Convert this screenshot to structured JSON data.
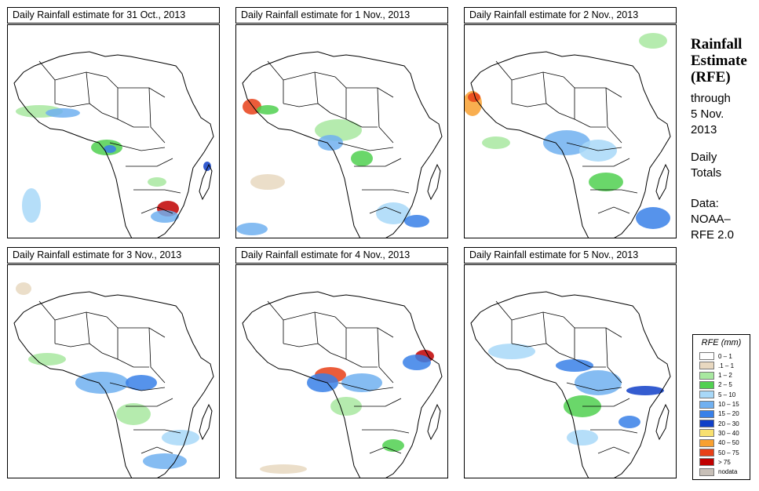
{
  "panels": [
    {
      "title": "Daily Rainfall estimate for  31 Oct., 2013",
      "variant": 0
    },
    {
      "title": "Daily Rainfall estimate for  1 Nov., 2013",
      "variant": 1
    },
    {
      "title": "Daily Rainfall estimate for  2 Nov., 2013",
      "variant": 2
    },
    {
      "title": "Daily Rainfall estimate for  3 Nov., 2013",
      "variant": 3
    },
    {
      "title": "Daily Rainfall estimate for  4 Nov., 2013",
      "variant": 4
    },
    {
      "title": "Daily Rainfall estimate for  5 Nov., 2013",
      "variant": 5
    }
  ],
  "sidebar": {
    "title_line1": "Rainfall",
    "title_line2": "Estimate",
    "title_line3": "(RFE)",
    "through": "through",
    "date_line1": "5 Nov.",
    "date_line2": "2013",
    "daily": "Daily",
    "totals": "Totals",
    "data_label": "Data:",
    "source_line1": "NOAA–",
    "source_line2": "RFE 2.0"
  },
  "legend": {
    "title": "RFE (mm)",
    "items": [
      {
        "label": "0 – 1",
        "color": "#ffffff"
      },
      {
        "label": ".1 – 1",
        "color": "#e8d8c0"
      },
      {
        "label": "1 – 2",
        "color": "#a8e8a0"
      },
      {
        "label": "2 – 5",
        "color": "#50d050"
      },
      {
        "label": "5 – 10",
        "color": "#a8d8f8"
      },
      {
        "label": "10 – 15",
        "color": "#70b0f0"
      },
      {
        "label": "15 – 20",
        "color": "#3880e8"
      },
      {
        "label": "20 – 30",
        "color": "#1040c8"
      },
      {
        "label": "30 – 40",
        "color": "#f8e070"
      },
      {
        "label": "40 – 50",
        "color": "#f8a030"
      },
      {
        "label": "50 – 75",
        "color": "#e84018"
      },
      {
        "label": "> 75",
        "color": "#c00000"
      },
      {
        "label": "nodata",
        "color": "#c8c0b8"
      }
    ]
  }
}
